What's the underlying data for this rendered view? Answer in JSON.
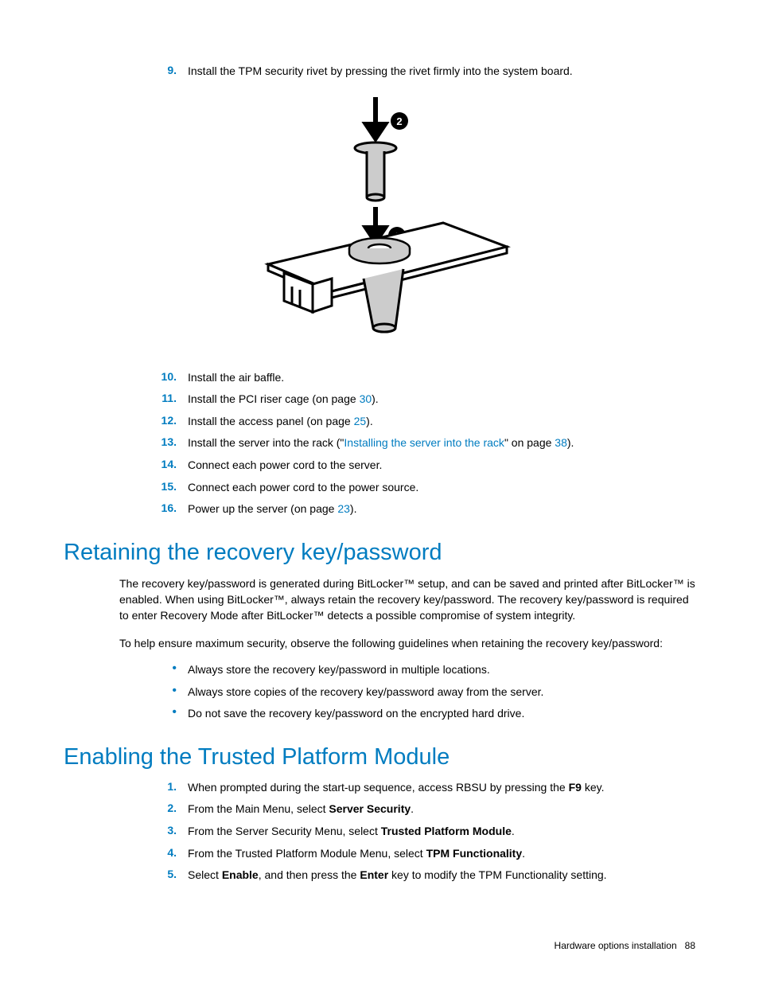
{
  "steps_a": [
    {
      "n": "9.",
      "text": "Install the TPM security rivet by pressing the rivet firmly into the system board."
    }
  ],
  "steps_b": [
    {
      "n": "10.",
      "text": "Install the air baffle."
    },
    {
      "n": "11.",
      "parts": [
        {
          "t": "Install the PCI riser cage (on page "
        },
        {
          "t": "30",
          "link": true
        },
        {
          "t": ")."
        }
      ]
    },
    {
      "n": "12.",
      "parts": [
        {
          "t": "Install the access panel (on page "
        },
        {
          "t": "25",
          "link": true
        },
        {
          "t": ")."
        }
      ]
    },
    {
      "n": "13.",
      "parts": [
        {
          "t": "Install the server into the rack (\""
        },
        {
          "t": "Installing the server into the rack",
          "link": true
        },
        {
          "t": "\" on page "
        },
        {
          "t": "38",
          "link": true
        },
        {
          "t": ")."
        }
      ]
    },
    {
      "n": "14.",
      "text": "Connect each power cord to the server."
    },
    {
      "n": "15.",
      "text": "Connect each power cord to the power source."
    },
    {
      "n": "16.",
      "parts": [
        {
          "t": "Power up the server (on page "
        },
        {
          "t": "23",
          "link": true
        },
        {
          "t": ")."
        }
      ]
    }
  ],
  "h2a": "Retaining the recovery key/password",
  "para1": "The recovery key/password is generated during BitLocker™ setup, and can be saved and printed after BitLocker™ is enabled. When using BitLocker™, always retain the recovery key/password. The recovery key/password is required to enter Recovery Mode after BitLocker™ detects a possible compromise of system integrity.",
  "para2": "To help ensure maximum security, observe the following guidelines when retaining the recovery key/password:",
  "bullets": [
    "Always store the recovery key/password in multiple locations.",
    "Always store copies of the recovery key/password away from the server.",
    "Do not save the recovery key/password on the encrypted hard drive."
  ],
  "h2b": "Enabling the Trusted Platform Module",
  "steps_c": [
    {
      "n": "1.",
      "parts": [
        {
          "t": "When prompted during the start-up sequence, access RBSU by pressing the "
        },
        {
          "t": "F9",
          "b": true
        },
        {
          "t": " key."
        }
      ]
    },
    {
      "n": "2.",
      "parts": [
        {
          "t": "From the Main Menu, select "
        },
        {
          "t": "Server Security",
          "b": true
        },
        {
          "t": "."
        }
      ]
    },
    {
      "n": "3.",
      "parts": [
        {
          "t": "From the Server Security Menu, select "
        },
        {
          "t": "Trusted Platform Module",
          "b": true
        },
        {
          "t": "."
        }
      ]
    },
    {
      "n": "4.",
      "parts": [
        {
          "t": "From the Trusted Platform Module Menu, select "
        },
        {
          "t": "TPM Functionality",
          "b": true
        },
        {
          "t": "."
        }
      ]
    },
    {
      "n": "5.",
      "parts": [
        {
          "t": "Select "
        },
        {
          "t": "Enable",
          "b": true
        },
        {
          "t": ", and then press the "
        },
        {
          "t": "Enter",
          "b": true
        },
        {
          "t": " key to modify the TPM Functionality setting."
        }
      ]
    }
  ],
  "footer_section": "Hardware options installation",
  "footer_page": "88",
  "diagram": {
    "labels": [
      "2",
      "1"
    ],
    "line_color": "#000000",
    "fill_color": "#ffffff",
    "gray_fill": "#cccccc"
  }
}
